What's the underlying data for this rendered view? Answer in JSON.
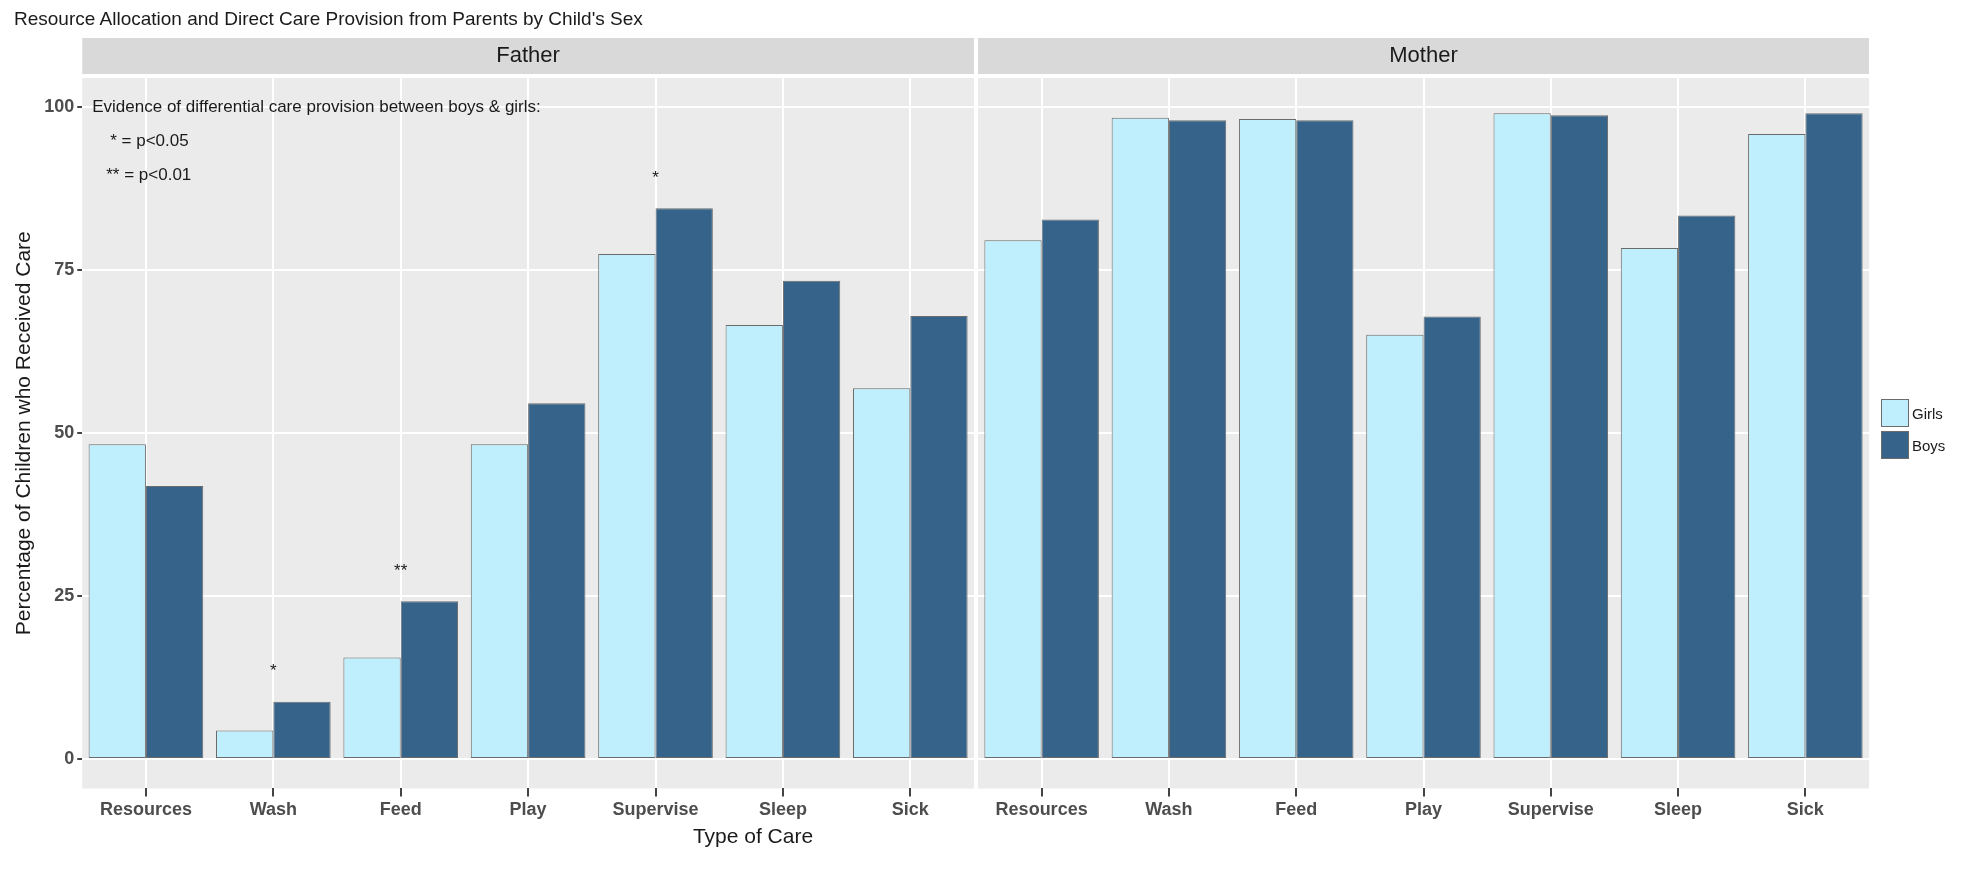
{
  "chart_data": [
    {
      "type": "bar",
      "title": "Resource Allocation and Direct Care Provision from Parents by Child's Sex",
      "subtitle": "Father",
      "xlabel": "Type of Care",
      "ylabel": "Percentage of Children who Received Care",
      "categories": [
        "Resources",
        "Wash",
        "Feed",
        "Play",
        "Supervise",
        "Sleep",
        "Sick"
      ],
      "series": [
        {
          "color": "#bfeefc",
          "values": [
            48.3,
            4.4,
            15.6,
            48.3,
            77.5,
            66.6,
            56.9
          ]
        },
        {
          "color": "#35638a",
          "values": [
            41.9,
            8.8,
            24.2,
            54.6,
            84.5,
            73.4,
            68.0
          ]
        }
      ],
      "ylim": [
        -4.5,
        104.5
      ],
      "yticks": [
        0,
        25,
        50,
        75,
        100
      ],
      "grid": true,
      "legend": false,
      "annotations": [
        "Evidence of differential care provision between boys & girls:",
        "* = p<0.05",
        "** = p<0.01",
        {
          "text": "*",
          "x": "Wash",
          "y": 8.8
        },
        {
          "text": "**",
          "x": "Feed",
          "y": 24.2
        },
        {
          "text": "*",
          "x": "Supervise",
          "y": 84.5
        }
      ]
    },
    {
      "type": "bar",
      "subtitle": "Mother",
      "categories": [
        "Resources",
        "Wash",
        "Feed",
        "Play",
        "Supervise",
        "Sleep",
        "Sick"
      ],
      "series": [
        {
          "name": "Girls",
          "color": "#bfeefc",
          "values": [
            79.6,
            98.4,
            98.2,
            65.1,
            99.1,
            78.4,
            95.9
          ]
        },
        {
          "name": "Boys",
          "color": "#35638a",
          "values": [
            82.8,
            98.0,
            98.0,
            67.9,
            98.8,
            83.4,
            99.1
          ]
        }
      ],
      "ylim": [
        -4.5,
        104.5
      ],
      "yticks": [
        0,
        25,
        50,
        75,
        100
      ],
      "grid": true,
      "legend": "right",
      "tick_labels": "x"
    }
  ]
}
